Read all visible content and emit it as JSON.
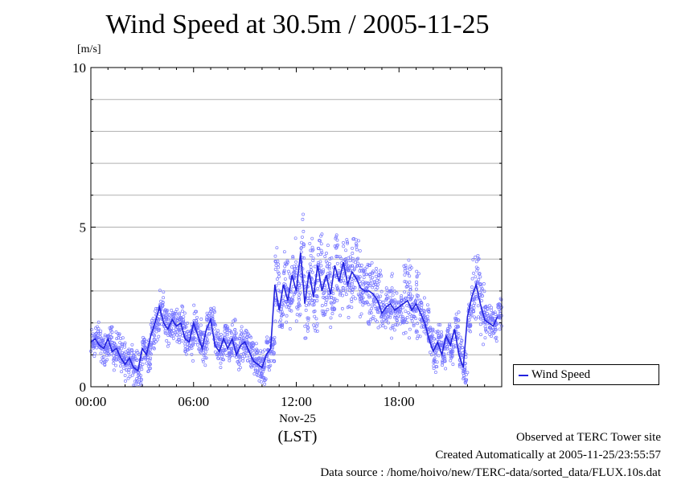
{
  "title": "Wind Speed at 30.5m / 2005-11-25",
  "unit": "[m/s]",
  "x_date": "Nov-25",
  "x_zone": "(LST)",
  "footer": {
    "site": "Observed at TERC Tower site",
    "created": "Created Automatically at 2005-11-25/23:55:57",
    "source": "Data source : /home/hoivo/new/TERC-data/sorted_data/FLUX.10s.dat"
  },
  "chart_data": {
    "type": "line",
    "title": "Wind Speed at 30.5m / 2005-11-25",
    "ylabel": "[m/s]",
    "xlabel": "Nov-25 (LST)",
    "xlim": [
      0,
      24
    ],
    "ylim": [
      0,
      10
    ],
    "x_ticks": [
      {
        "v": 0,
        "label": "00:00"
      },
      {
        "v": 6,
        "label": "06:00"
      },
      {
        "v": 12,
        "label": "12:00"
      },
      {
        "v": 18,
        "label": "18:00"
      }
    ],
    "y_ticks": [
      {
        "v": 0,
        "label": "0"
      },
      {
        "v": 5,
        "label": "5"
      },
      {
        "v": 10,
        "label": "10"
      }
    ],
    "grid": true,
    "legend_position": "bottom-right outside",
    "colors": {
      "line": "#2222dd",
      "scatter": "#7777ff"
    },
    "series": [
      {
        "name": "Wind Speed",
        "x": [
          0.0,
          0.25,
          0.5,
          0.75,
          1.0,
          1.25,
          1.5,
          1.75,
          2.0,
          2.25,
          2.5,
          2.75,
          3.0,
          3.25,
          3.5,
          3.75,
          4.0,
          4.25,
          4.5,
          4.75,
          5.0,
          5.25,
          5.5,
          5.75,
          6.0,
          6.25,
          6.5,
          6.75,
          7.0,
          7.25,
          7.5,
          7.75,
          8.0,
          8.25,
          8.5,
          8.75,
          9.0,
          9.25,
          9.5,
          9.75,
          10.0,
          10.25,
          10.5,
          10.75,
          11.0,
          11.25,
          11.5,
          11.75,
          12.0,
          12.25,
          12.5,
          12.75,
          13.0,
          13.25,
          13.5,
          13.75,
          14.0,
          14.25,
          14.5,
          14.75,
          15.0,
          15.25,
          15.5,
          15.75,
          16.0,
          16.25,
          16.5,
          16.75,
          17.0,
          17.25,
          17.5,
          17.75,
          18.0,
          18.25,
          18.5,
          18.75,
          19.0,
          19.25,
          19.5,
          19.75,
          20.0,
          20.25,
          20.5,
          20.75,
          21.0,
          21.25,
          21.5,
          21.75,
          22.0,
          22.25,
          22.5,
          22.75,
          23.0,
          23.25,
          23.5,
          23.75
        ],
        "y": [
          1.4,
          1.5,
          1.3,
          1.2,
          1.5,
          1.1,
          1.2,
          0.9,
          0.7,
          0.9,
          0.6,
          0.5,
          1.2,
          1.0,
          1.6,
          2.0,
          2.5,
          2.0,
          1.8,
          2.1,
          1.9,
          2.0,
          1.5,
          1.4,
          2.0,
          1.6,
          1.2,
          1.8,
          2.1,
          1.3,
          1.1,
          1.5,
          1.2,
          1.5,
          1.0,
          1.3,
          1.4,
          1.1,
          0.8,
          0.7,
          0.6,
          1.0,
          1.2,
          3.2,
          2.4,
          3.2,
          2.7,
          3.5,
          3.0,
          4.2,
          2.6,
          3.6,
          2.8,
          3.8,
          3.0,
          3.5,
          2.9,
          3.8,
          3.3,
          3.9,
          3.2,
          3.6,
          3.4,
          3.1,
          3.0,
          3.0,
          2.9,
          2.7,
          2.3,
          2.5,
          2.6,
          2.4,
          2.5,
          2.6,
          2.7,
          2.4,
          2.6,
          2.3,
          2.0,
          1.5,
          1.1,
          1.4,
          1.0,
          1.6,
          1.3,
          1.8,
          1.0,
          0.6,
          2.2,
          2.8,
          3.2,
          2.6,
          2.1,
          2.0,
          1.9,
          2.2
        ]
      }
    ]
  }
}
